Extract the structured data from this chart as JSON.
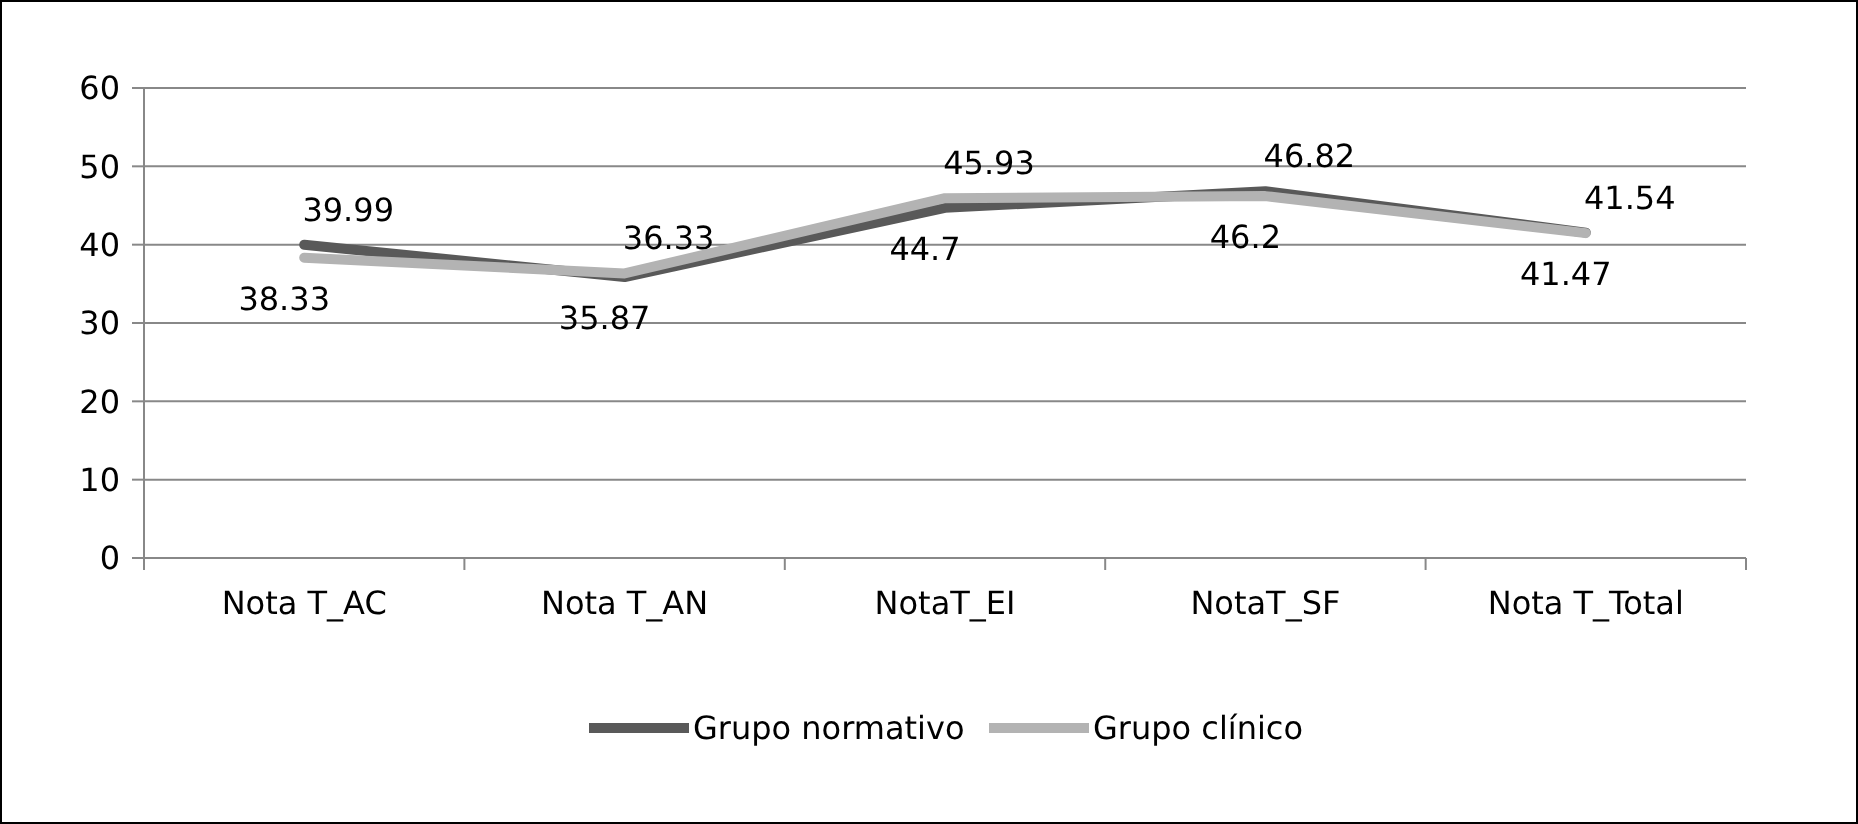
{
  "chart_data": {
    "type": "line",
    "categories": [
      "Nota T_AC",
      "Nota T_AN",
      "NotaT_EI",
      "NotaT_SF",
      "Nota T_Total"
    ],
    "series": [
      {
        "name": "Grupo normativo",
        "color": "#595959",
        "values": [
          39.99,
          35.87,
          44.7,
          46.82,
          41.54
        ]
      },
      {
        "name": "Grupo clínico",
        "color": "#b3b3b3",
        "values": [
          38.33,
          36.33,
          45.93,
          46.2,
          41.47
        ]
      }
    ],
    "ylim": [
      0,
      60
    ],
    "yticks": [
      0,
      10,
      20,
      30,
      40,
      50,
      60
    ],
    "grid": "y",
    "legend": "bottom",
    "data_labels": true,
    "marker": "none",
    "line_style": "solid"
  }
}
